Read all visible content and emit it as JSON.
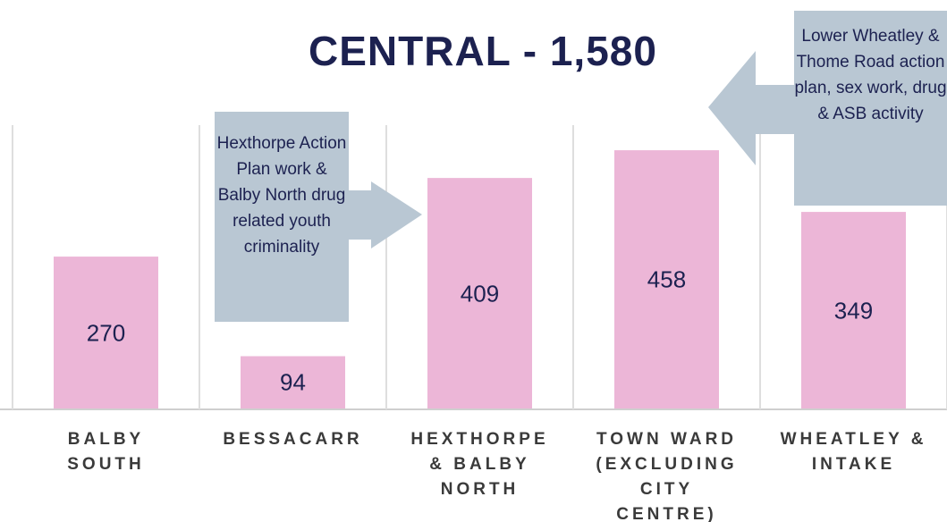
{
  "chart_data": {
    "type": "bar",
    "title": "CENTRAL - 1,580",
    "categories": [
      "BALBY SOUTH",
      "BESSACARR",
      "HEXTHORPE & BALBY NORTH",
      "TOWN WARD (EXCLUDING CITY CENTRE)",
      "WHEATLEY & INTAKE"
    ],
    "values": [
      270,
      94,
      409,
      458,
      349
    ],
    "color": "#ecb6d7",
    "annotations": [
      "Hexthorpe Action Plan work & Balby North drug related youth criminality",
      "Lower Wheatley & Thome Road action plan, sex work, drug & ASB activity"
    ]
  }
}
